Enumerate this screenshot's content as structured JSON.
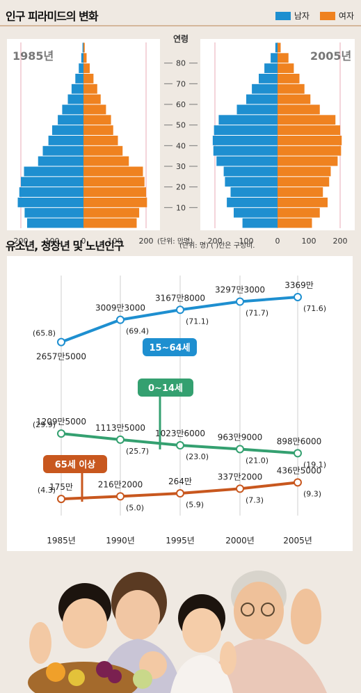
{
  "pyramid": {
    "title": "인구 피라미드의 변화",
    "legend": {
      "male": "남자",
      "female": "여자"
    },
    "colors": {
      "male": "#1e8fd0",
      "female": "#ef8220"
    },
    "age_label": "연령",
    "unit": "(단위: 만명)"
  },
  "trend": {
    "title": "유소년, 청장년 및 노년인구",
    "unit": "(단위: 명) ( )안은 구성비."
  },
  "chart_data": [
    {
      "type": "bar",
      "title": "1985년",
      "orientation": "population-pyramid",
      "y_ticks": [
        "10",
        "20",
        "30",
        "40",
        "50",
        "60",
        "70",
        "80"
      ],
      "x_ticks": [
        "200",
        "100",
        "0",
        "100",
        "200"
      ],
      "xlim": [
        -220,
        220
      ],
      "bands": 18,
      "series": [
        {
          "name": "남자",
          "values": [
            180,
            188,
            210,
            205,
            200,
            190,
            145,
            130,
            112,
            100,
            82,
            68,
            50,
            38,
            26,
            15,
            7,
            3
          ]
        },
        {
          "name": "여자",
          "values": [
            170,
            178,
            203,
            200,
            195,
            190,
            145,
            125,
            110,
            95,
            88,
            72,
            55,
            44,
            32,
            20,
            10,
            4
          ]
        }
      ]
    },
    {
      "type": "bar",
      "title": "2005년",
      "orientation": "population-pyramid",
      "x_ticks": [
        "200",
        "100",
        "0",
        "100",
        "200"
      ],
      "xlim": [
        -220,
        220
      ],
      "bands": 18,
      "series": [
        {
          "name": "남자",
          "values": [
            112,
            140,
            162,
            150,
            168,
            172,
            195,
            205,
            207,
            203,
            188,
            130,
            100,
            82,
            60,
            42,
            22,
            7
          ]
        },
        {
          "name": "여자",
          "values": [
            110,
            135,
            160,
            145,
            165,
            170,
            192,
            203,
            205,
            200,
            185,
            135,
            105,
            86,
            70,
            52,
            35,
            10
          ]
        }
      ]
    },
    {
      "type": "line",
      "categories": [
        "1985년",
        "1990년",
        "1995년",
        "2000년",
        "2005년"
      ],
      "series": [
        {
          "name": "15~64세",
          "color": "#1e8fd0",
          "values": [
            26575000,
            30093000,
            31678000,
            32973000,
            33690000
          ],
          "value_labels": [
            "2657만5000",
            "3009만3000",
            "3167만8000",
            "3297만3000",
            "3369만"
          ],
          "shares": [
            "(65.8)",
            "(69.4)",
            "(71.1)",
            "(71.7)",
            "(71.6)"
          ]
        },
        {
          "name": "0~14세",
          "color": "#34a070",
          "values": [
            12095000,
            11135000,
            10236000,
            9639000,
            8986000
          ],
          "value_labels": [
            "1209만5000",
            "1113만5000",
            "1023만6000",
            "963만9000",
            "898만6000"
          ],
          "shares": [
            "(29.9)",
            "(25.7)",
            "(23.0)",
            "(21.0)",
            "(19.1)"
          ]
        },
        {
          "name": "65세 이상",
          "color": "#c8571e",
          "values": [
            1750000,
            2162000,
            2640000,
            3372000,
            4365000
          ],
          "value_labels": [
            "175만",
            "216만2000",
            "264만",
            "337만2000",
            "436만5000"
          ],
          "shares": [
            "(4.3)",
            "(5.0)",
            "(5.9)",
            "(7.3)",
            "(9.3)"
          ]
        }
      ]
    }
  ]
}
